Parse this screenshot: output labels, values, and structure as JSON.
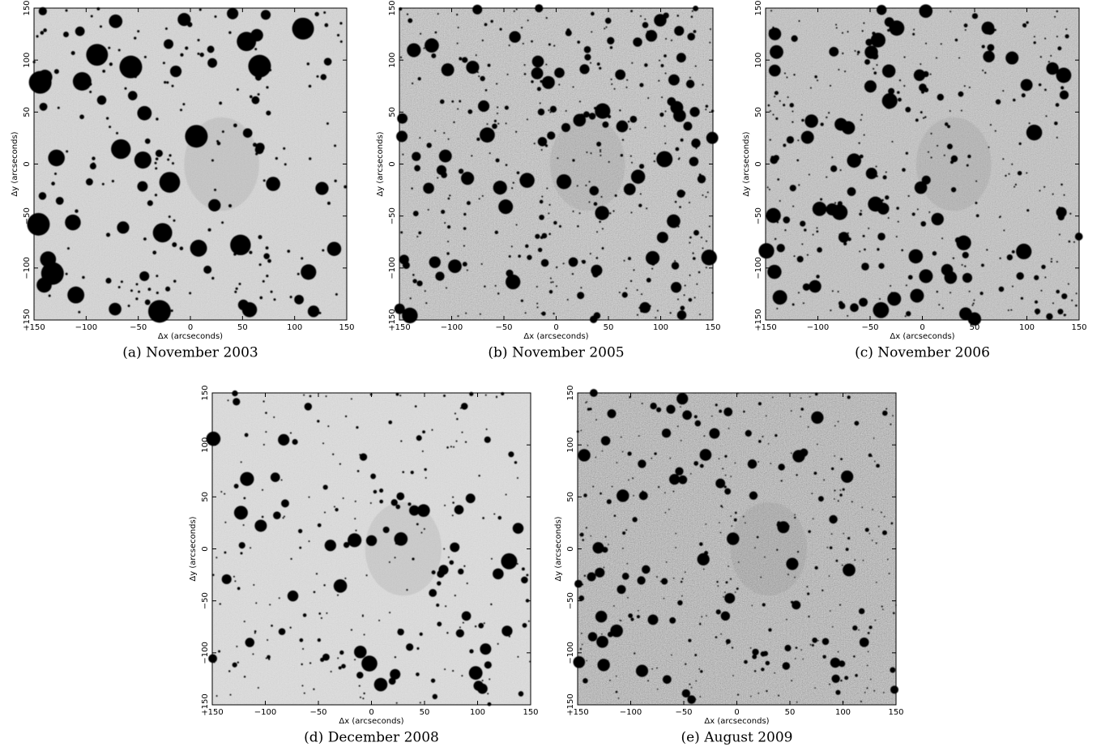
{
  "chart_data": [
    {
      "type": "image",
      "caption": "(a) November 2003",
      "xlabel": "Δx (arcseconds)",
      "ylabel": "Δy (arcseconds)",
      "xlim": [
        -150,
        150
      ],
      "ylim": [
        -150,
        150
      ],
      "xticks": [
        {
          "value": -150,
          "label": "−150"
        },
        {
          "value": -100,
          "label": "−100"
        },
        {
          "value": -50,
          "label": "−50"
        },
        0,
        50,
        100,
        150
      ],
      "yticks": [
        {
          "value": -150,
          "label": "−150"
        },
        {
          "value": -100,
          "label": "−100"
        },
        {
          "value": -50,
          "label": "−50"
        },
        0,
        50,
        100,
        150
      ]
    },
    {
      "type": "image",
      "caption": "(b) November 2005",
      "xlabel": "Δx (arcseconds)",
      "ylabel": "Δy (arcseconds)",
      "xlim": [
        -150,
        150
      ],
      "ylim": [
        -150,
        150
      ],
      "xticks": [
        {
          "value": -150,
          "label": "−150"
        },
        {
          "value": -100,
          "label": "−100"
        },
        {
          "value": -50,
          "label": "−50"
        },
        0,
        50,
        100,
        150
      ],
      "yticks": [
        {
          "value": -150,
          "label": "−150"
        },
        {
          "value": -100,
          "label": "−100"
        },
        {
          "value": -50,
          "label": "−50"
        },
        0,
        50,
        100,
        150
      ]
    },
    {
      "type": "image",
      "caption": "(c) November 2006",
      "xlabel": "Δx (arcseconds)",
      "ylabel": "Δy (arcseconds)",
      "xlim": [
        -150,
        150
      ],
      "ylim": [
        -150,
        150
      ],
      "xticks": [
        {
          "value": -150,
          "label": "−150"
        },
        {
          "value": -100,
          "label": "−100"
        },
        {
          "value": -50,
          "label": "−50"
        },
        0,
        50,
        100,
        150
      ],
      "yticks": [
        {
          "value": -150,
          "label": "−150"
        },
        {
          "value": -100,
          "label": "−100"
        },
        {
          "value": -50,
          "label": "−50"
        },
        0,
        50,
        100,
        150
      ]
    },
    {
      "type": "image",
      "caption": "(d) December 2008",
      "xlabel": "Δx (arcseconds)",
      "ylabel": "Δy (arcseconds)",
      "xlim": [
        -150,
        150
      ],
      "ylim": [
        -150,
        150
      ],
      "xticks": [
        {
          "value": -150,
          "label": "−150"
        },
        {
          "value": -100,
          "label": "−100"
        },
        {
          "value": -50,
          "label": "−50"
        },
        0,
        50,
        100,
        150
      ],
      "yticks": [
        {
          "value": -150,
          "label": "−150"
        },
        {
          "value": -100,
          "label": "−100"
        },
        {
          "value": -50,
          "label": "−50"
        },
        0,
        50,
        100,
        150
      ]
    },
    {
      "type": "image",
      "caption": "(e) August 2009",
      "xlabel": "Δx (arcseconds)",
      "ylabel": "Δy (arcseconds)",
      "xlim": [
        -150,
        150
      ],
      "ylim": [
        -150,
        150
      ],
      "xticks": [
        {
          "value": -150,
          "label": "−150"
        },
        {
          "value": -100,
          "label": "−100"
        },
        {
          "value": -50,
          "label": "−50"
        },
        0,
        50,
        100,
        150
      ],
      "yticks": [
        {
          "value": -150,
          "label": "−150"
        },
        {
          "value": -100,
          "label": "−100"
        },
        {
          "value": -50,
          "label": "−50"
        },
        0,
        50,
        100,
        150
      ]
    }
  ]
}
